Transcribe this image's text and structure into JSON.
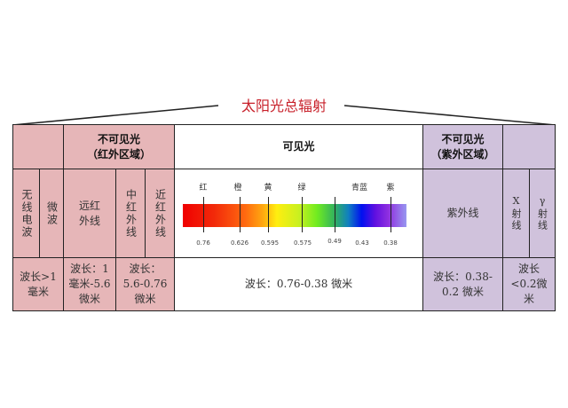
{
  "title": "太阳光总辐射",
  "header": {
    "ir_region": "不可见光\n（红外区域）",
    "visible": "可见光",
    "uv_region": "不可见光\n（紫外区域）"
  },
  "bands": {
    "radio": "无线电波",
    "microwave": "微波",
    "far_ir": "远红外线",
    "mid_ir": "中红外线",
    "near_ir": "近红外线",
    "uv": "紫外线",
    "xray": "X射线",
    "gamma": "γ射线"
  },
  "wavelengths": {
    "radio_microwave": "波长>1毫米",
    "far_ir": "波长：1毫米-5.6微米",
    "mid_near_ir": "波长：5.6-0.76微米",
    "visible": "波长：0.76-0.38 微米",
    "uv": "波长：0.38-0.2 微米",
    "xray_gamma": "波长<0.2微米"
  },
  "spectrum": {
    "color_labels": [
      "红",
      "橙",
      "黄",
      "绿",
      "青蓝",
      "紫"
    ],
    "tick_values": [
      "0.76",
      "0.626",
      "0.595",
      "0.575",
      "0.49",
      "0.43",
      "0.38"
    ]
  },
  "colors": {
    "ir_fill": "#e6b6b8",
    "uv_fill": "#d0c2dc",
    "title": "#c8202a"
  }
}
